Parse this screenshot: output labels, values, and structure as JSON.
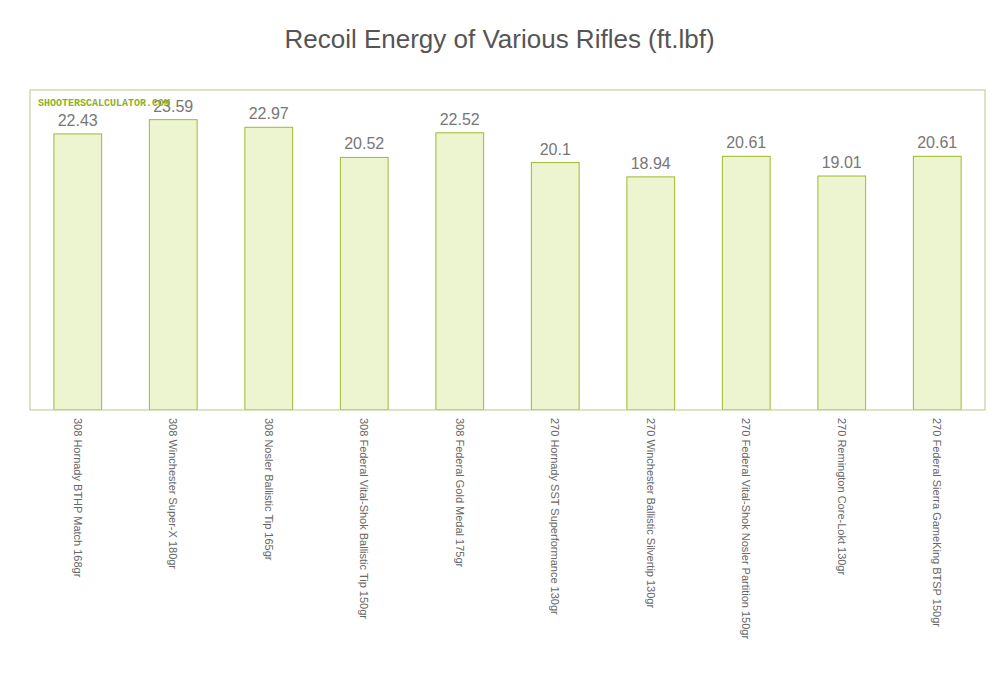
{
  "chart_data": {
    "type": "bar",
    "title": "Recoil Energy of Various Rifles (ft.lbf)",
    "categories": [
      "308 Hornady BTHP Match 168gr",
      "308 Winchester Super-X 180gr",
      "308 Nosler Ballistic Tip 165gr",
      "308 Federal Vital-Shok Ballistic Tip 150gr",
      "308 Federal Gold Medal 175gr",
      "270 Hornady SST Superformance 130gr",
      "270 Winchester Ballistic Silvertip 130gr",
      "270 Federal Vital-Shok Nosler Partition 150gr",
      "270 Remington Core-Lokt 130gr",
      "270 Federal Sierra GameKing BTSP 150gr"
    ],
    "values": [
      22.43,
      23.59,
      22.97,
      20.52,
      22.52,
      20.1,
      18.94,
      20.61,
      19.01,
      20.61
    ],
    "color": "#edf5d0",
    "annotations": [
      "SHOOTERSCALCULATOR.COM"
    ],
    "ylim": [
      0,
      26
    ],
    "yticks": [],
    "grid": false,
    "data_labels": true,
    "tick_labels": "x"
  }
}
